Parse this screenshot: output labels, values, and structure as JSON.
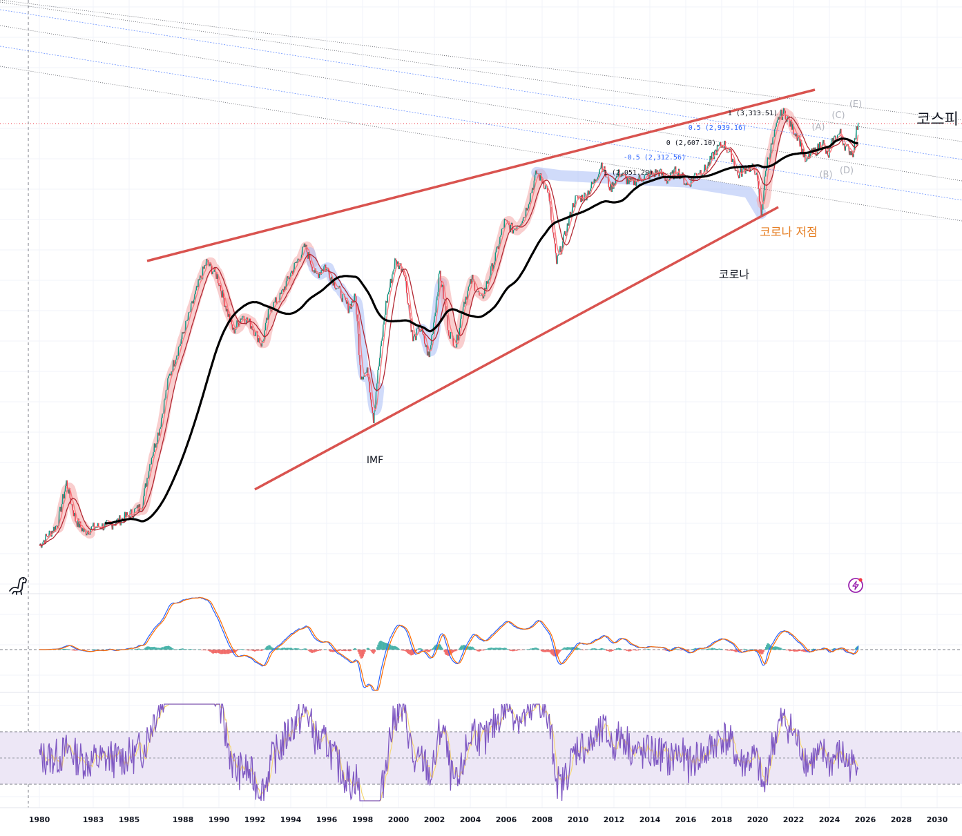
{
  "title": "코스피",
  "chart_data": {
    "type": "line",
    "title": "코스피",
    "x_ticks": [
      1980,
      1983,
      1985,
      1988,
      1990,
      1992,
      1994,
      1996,
      1998,
      2000,
      2002,
      2004,
      2006,
      2008,
      2010,
      2012,
      2014,
      2016,
      2018,
      2020,
      2022,
      2024,
      2026,
      2028,
      2030
    ],
    "price_series": {
      "name": "KOSPI",
      "points": [
        [
          1980.0,
          106
        ],
        [
          1981.0,
          125
        ],
        [
          1981.5,
          175
        ],
        [
          1982.0,
          130
        ],
        [
          1982.5,
          118
        ],
        [
          1983.0,
          122
        ],
        [
          1984.0,
          125
        ],
        [
          1985.0,
          135
        ],
        [
          1985.7,
          145
        ],
        [
          1986.2,
          210
        ],
        [
          1986.7,
          270
        ],
        [
          1987.2,
          400
        ],
        [
          1987.8,
          520
        ],
        [
          1988.4,
          680
        ],
        [
          1988.9,
          860
        ],
        [
          1989.3,
          1007
        ],
        [
          1989.9,
          900
        ],
        [
          1990.4,
          700
        ],
        [
          1990.8,
          580
        ],
        [
          1991.3,
          660
        ],
        [
          1991.8,
          610
        ],
        [
          1992.4,
          520
        ],
        [
          1992.8,
          690
        ],
        [
          1993.4,
          760
        ],
        [
          1994.0,
          920
        ],
        [
          1994.8,
          1138
        ],
        [
          1995.4,
          900
        ],
        [
          1995.9,
          980
        ],
        [
          1996.6,
          820
        ],
        [
          1997.2,
          700
        ],
        [
          1997.6,
          760
        ],
        [
          1997.9,
          410
        ],
        [
          1998.3,
          420
        ],
        [
          1998.6,
          290
        ],
        [
          1998.8,
          390
        ],
        [
          1999.3,
          720
        ],
        [
          1999.8,
          1010
        ],
        [
          2000.3,
          950
        ],
        [
          2000.8,
          540
        ],
        [
          2001.2,
          600
        ],
        [
          2001.7,
          470
        ],
        [
          2002.3,
          930
        ],
        [
          2002.8,
          580
        ],
        [
          2003.2,
          520
        ],
        [
          2003.6,
          720
        ],
        [
          2004.1,
          880
        ],
        [
          2004.6,
          740
        ],
        [
          2005.3,
          1000
        ],
        [
          2005.9,
          1380
        ],
        [
          2006.4,
          1300
        ],
        [
          2007.0,
          1450
        ],
        [
          2007.7,
          2050
        ],
        [
          2008.3,
          1800
        ],
        [
          2008.8,
          1000
        ],
        [
          2009.2,
          1200
        ],
        [
          2009.8,
          1650
        ],
        [
          2010.4,
          1700
        ],
        [
          2010.9,
          1900
        ],
        [
          2011.3,
          2200
        ],
        [
          2011.8,
          1800
        ],
        [
          2012.3,
          2050
        ],
        [
          2012.9,
          1880
        ],
        [
          2013.4,
          1950
        ],
        [
          2013.9,
          2000
        ],
        [
          2014.5,
          2060
        ],
        [
          2015.0,
          1920
        ],
        [
          2015.5,
          2100
        ],
        [
          2016.1,
          1850
        ],
        [
          2016.6,
          2050
        ],
        [
          2017.1,
          2100
        ],
        [
          2017.7,
          2450
        ],
        [
          2018.1,
          2580
        ],
        [
          2018.6,
          2300
        ],
        [
          2018.9,
          2000
        ],
        [
          2019.4,
          2150
        ],
        [
          2019.9,
          2090
        ],
        [
          2020.2,
          1460
        ],
        [
          2020.5,
          2200
        ],
        [
          2020.9,
          2700
        ],
        [
          2021.2,
          3200
        ],
        [
          2021.5,
          3300
        ],
        [
          2021.9,
          2950
        ],
        [
          2022.3,
          2700
        ],
        [
          2022.7,
          2200
        ],
        [
          2022.9,
          2350
        ],
        [
          2023.3,
          2450
        ],
        [
          2023.6,
          2650
        ],
        [
          2023.9,
          2300
        ],
        [
          2024.2,
          2650
        ],
        [
          2024.6,
          2800
        ],
        [
          2024.9,
          2500
        ],
        [
          2025.3,
          2400
        ],
        [
          2025.6,
          3100
        ]
      ]
    },
    "moving_average": {
      "name": "MA",
      "color": "#000000"
    },
    "fib_levels": [
      {
        "label": "1 (3,313.51)",
        "color": "#131722"
      },
      {
        "label": "0.5 (2,939.16)",
        "color": "#2962ff"
      },
      {
        "label": "0 (2,607.10)",
        "color": "#131722"
      },
      {
        "label": "-0.5 (2,312.56)",
        "color": "#2962ff"
      },
      {
        "label": "1 (2,051.29)",
        "color": "#131722"
      }
    ],
    "wave_labels": [
      "(A)",
      "(B)",
      "(C)",
      "(D)",
      "(E)"
    ],
    "annotations": {
      "imf": "IMF",
      "corona": "코로나",
      "corona_low": "코로나 저점"
    },
    "grid": true,
    "colors": {
      "trendline": "#d9534f",
      "price": "#089981",
      "macd": "#2962ff",
      "signal": "#ff6d00",
      "rsi": "#7e57c2",
      "rsi_band": "#ede7f6",
      "highlight_red": "#f4a6a6",
      "highlight_blue": "#a9bdf5",
      "label_orange": "#e67e22"
    },
    "panes": [
      "price",
      "macd",
      "rsi"
    ]
  },
  "icons": {
    "logo": "dino-logo-icon",
    "alert": "lightning-alert-icon"
  }
}
